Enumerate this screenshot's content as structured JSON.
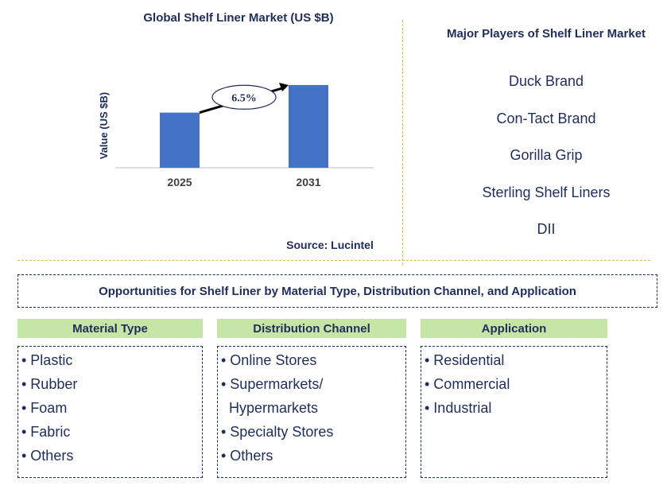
{
  "chart_data": {
    "type": "bar",
    "title": "Global Shelf Liner Market (US $B)",
    "categories": [
      "2025",
      "2031"
    ],
    "values": [
      1.0,
      1.5
    ],
    "ylabel": "Value (US $B)",
    "xlabel": "",
    "ylim": [
      0,
      1.6
    ],
    "annotation": "6.5%",
    "bar_color": "#4472c4",
    "grid": false
  },
  "source": "Source: Lucintel",
  "players": {
    "title": "Major Players of Shelf Liner Market",
    "items": [
      "Duck Brand",
      "Con-Tact Brand",
      "Gorilla Grip",
      "Sterling Shelf Liners",
      "DII"
    ]
  },
  "opportunities": {
    "title": "Opportunities for Shelf Liner by Material Type, Distribution Channel, and Application",
    "columns": [
      {
        "header": "Material Type",
        "items": [
          "• Plastic",
          "• Rubber",
          "• Foam",
          "• Fabric",
          "• Others"
        ]
      },
      {
        "header": "Distribution Channel",
        "items": [
          "• Online Stores",
          "• Supermarkets/",
          "  Hypermarkets",
          "• Specialty Stores",
          "• Others"
        ]
      },
      {
        "header": "Application",
        "items": [
          "• Residential",
          "• Commercial",
          "• Industrial"
        ]
      }
    ]
  },
  "colors": {
    "text": "#1f2d5a",
    "accent": "#4472c4",
    "header_bg": "#c6e6a8",
    "divider": "#e0b84a"
  }
}
